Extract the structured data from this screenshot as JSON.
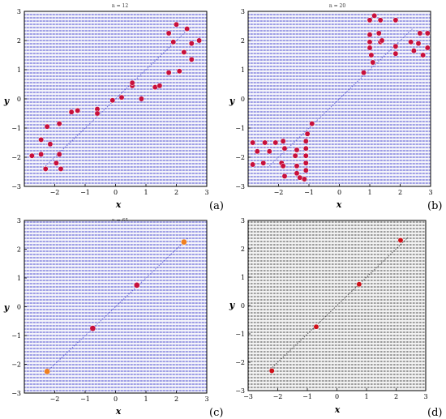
{
  "chart_data": [
    {
      "type": "scatter",
      "title": "n = 12",
      "panel_label": "(a)",
      "xlabel": "x",
      "ylabel": "y",
      "xlim": [
        -3,
        3
      ],
      "ylim": [
        -3,
        3
      ],
      "xticks": [
        "−2",
        "−1",
        "0",
        "1",
        "2",
        "3"
      ],
      "yticks": [
        "−3",
        "−2",
        "−1",
        "0",
        "1",
        "2",
        "3"
      ],
      "background_field_color": "#3a3ad0",
      "point_color": "#c8103c",
      "points": [
        [
          1.75,
          2.25
        ],
        [
          2.0,
          2.55
        ],
        [
          2.35,
          2.4
        ],
        [
          2.75,
          2.0
        ],
        [
          1.9,
          1.95
        ],
        [
          2.25,
          1.6
        ],
        [
          2.5,
          1.9
        ],
        [
          2.5,
          1.35
        ],
        [
          1.75,
          0.9
        ],
        [
          2.1,
          0.95
        ],
        [
          1.3,
          0.4
        ],
        [
          1.45,
          0.45
        ],
        [
          0.85,
          0.0
        ],
        [
          0.55,
          0.45
        ],
        [
          0.55,
          0.55
        ],
        [
          0.2,
          0.05
        ],
        [
          -0.6,
          -0.35
        ],
        [
          -0.6,
          -0.5
        ],
        [
          -0.1,
          -0.05
        ],
        [
          -1.45,
          -0.45
        ],
        [
          -1.25,
          -0.4
        ],
        [
          -2.25,
          -0.95
        ],
        [
          -1.85,
          -0.85
        ],
        [
          -2.45,
          -1.4
        ],
        [
          -2.15,
          -1.55
        ],
        [
          -2.75,
          -1.95
        ],
        [
          -2.45,
          -1.9
        ],
        [
          -1.85,
          -1.9
        ],
        [
          -2.3,
          -2.4
        ],
        [
          -1.95,
          -2.2
        ],
        [
          -1.8,
          -2.4
        ]
      ]
    },
    {
      "type": "scatter",
      "title": "n = 20",
      "panel_label": "(b)",
      "xlabel": "x",
      "ylabel": "y",
      "xlim": [
        -3,
        3
      ],
      "ylim": [
        -3,
        3
      ],
      "xticks": [
        "−2",
        "−1",
        "0",
        "1",
        "2",
        "3"
      ],
      "yticks": [
        "−3",
        "−2",
        "−1",
        "0",
        "1",
        "2",
        "3"
      ],
      "background_field_color": "#3a3ad0",
      "point_color": "#c8103c",
      "points": [
        [
          1.0,
          2.7
        ],
        [
          1.15,
          2.85
        ],
        [
          1.35,
          2.7
        ],
        [
          1.85,
          2.7
        ],
        [
          2.65,
          2.25
        ],
        [
          2.9,
          2.25
        ],
        [
          1.0,
          2.2
        ],
        [
          1.3,
          2.25
        ],
        [
          1.35,
          1.95
        ],
        [
          1.4,
          2.0
        ],
        [
          1.0,
          1.95
        ],
        [
          2.35,
          1.95
        ],
        [
          2.6,
          1.9
        ],
        [
          1.0,
          1.75
        ],
        [
          1.85,
          1.8
        ],
        [
          2.9,
          1.75
        ],
        [
          1.05,
          1.5
        ],
        [
          1.85,
          1.55
        ],
        [
          2.45,
          1.65
        ],
        [
          2.75,
          1.5
        ],
        [
          1.1,
          1.25
        ],
        [
          0.8,
          0.9
        ],
        [
          -0.9,
          -0.85
        ],
        [
          -1.05,
          -1.2
        ],
        [
          -1.1,
          -1.45
        ],
        [
          -1.1,
          -1.7
        ],
        [
          -1.1,
          -1.95
        ],
        [
          -1.1,
          -2.2
        ],
        [
          -1.1,
          -2.45
        ],
        [
          -1.15,
          -2.75
        ],
        [
          -1.3,
          -2.7
        ],
        [
          -2.85,
          -1.5
        ],
        [
          -2.45,
          -1.5
        ],
        [
          -2.1,
          -1.5
        ],
        [
          -1.85,
          -1.45
        ],
        [
          -2.7,
          -1.8
        ],
        [
          -2.3,
          -1.8
        ],
        [
          -1.8,
          -1.7
        ],
        [
          -1.45,
          -1.95
        ],
        [
          -1.4,
          -1.75
        ],
        [
          -2.85,
          -2.25
        ],
        [
          -2.5,
          -2.2
        ],
        [
          -1.9,
          -2.2
        ],
        [
          -1.85,
          -2.3
        ],
        [
          -1.4,
          -2.3
        ],
        [
          -1.4,
          -2.55
        ],
        [
          -1.8,
          -2.65
        ]
      ]
    },
    {
      "type": "scatter",
      "title": "n = 65",
      "panel_label": "(c)",
      "xlabel": "x",
      "ylabel": "y",
      "xlim": [
        -3,
        3
      ],
      "ylim": [
        -3,
        3
      ],
      "xticks": [
        "−2",
        "−1",
        "0",
        "1",
        "2",
        "3"
      ],
      "yticks": [
        "−3",
        "−2",
        "−1",
        "0",
        "1",
        "2",
        "3"
      ],
      "background_field_color": "#3a3ad0",
      "point_color": "#c8103c",
      "end_point_color": "#f08020",
      "points": [
        [
          -2.25,
          -2.25
        ],
        [
          -0.75,
          -0.75
        ],
        [
          0.7,
          0.75
        ],
        [
          2.25,
          2.25
        ]
      ]
    },
    {
      "type": "scatter",
      "title": "",
      "panel_label": "(d)",
      "xlabel": "x",
      "ylabel": "y",
      "xlim": [
        -3,
        3
      ],
      "ylim": [
        -3,
        3
      ],
      "xticks": [
        "−3",
        "−2",
        "−1",
        "0",
        "1",
        "2",
        "3"
      ],
      "yticks": [
        "−3",
        "−2",
        "−1",
        "0",
        "1",
        "2",
        "3"
      ],
      "background_field_color": "#222222",
      "point_color": "#d01018",
      "points": [
        [
          -2.2,
          -2.3
        ],
        [
          -0.7,
          -0.75
        ],
        [
          0.75,
          0.75
        ],
        [
          2.15,
          2.3
        ]
      ]
    }
  ]
}
